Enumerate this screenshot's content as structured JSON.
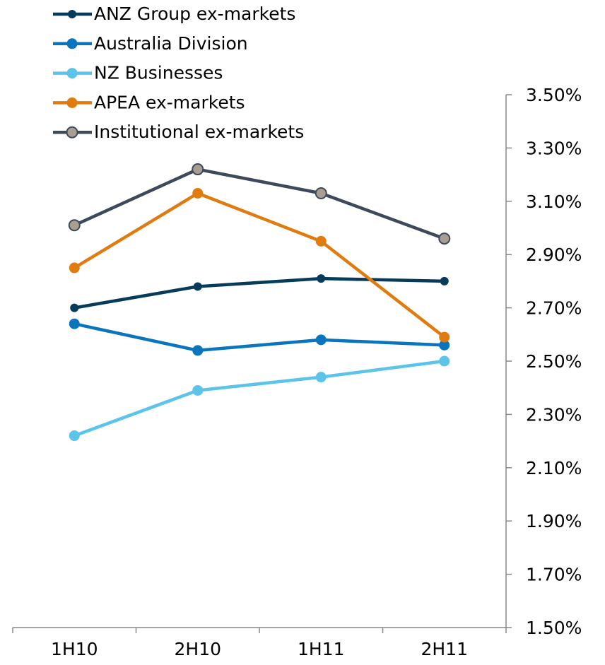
{
  "chart_data": {
    "type": "line",
    "categories": [
      "1H10",
      "2H10",
      "1H11",
      "2H11"
    ],
    "series": [
      {
        "name": "ANZ Group ex-markets",
        "color": "#073b5a",
        "values": [
          2.7,
          2.78,
          2.81,
          2.8
        ]
      },
      {
        "name": "Australia Division",
        "color": "#0a75bd",
        "values": [
          2.64,
          2.54,
          2.58,
          2.56
        ]
      },
      {
        "name": "NZ Businesses",
        "color": "#5bc4e8",
        "values": [
          2.22,
          2.39,
          2.44,
          2.5
        ]
      },
      {
        "name": "APEA ex-markets",
        "color": "#e07b10",
        "values": [
          2.85,
          3.13,
          2.95,
          2.59
        ]
      },
      {
        "name": "Institutional ex-markets",
        "color": "#3d4a5c",
        "marker_fill": "#a89e92",
        "values": [
          3.01,
          3.22,
          3.13,
          2.96
        ]
      }
    ],
    "ylim": [
      1.5,
      3.5
    ],
    "yticks": [
      {
        "value": 1.5,
        "label": "1.50%"
      },
      {
        "value": 1.7,
        "label": "1.70%"
      },
      {
        "value": 1.9,
        "label": "1.90%"
      },
      {
        "value": 2.1,
        "label": "2.10%"
      },
      {
        "value": 2.3,
        "label": "2.30%"
      },
      {
        "value": 2.5,
        "label": "2.50%"
      },
      {
        "value": 2.7,
        "label": "2.70%"
      },
      {
        "value": 2.9,
        "label": "2.90%"
      },
      {
        "value": 3.1,
        "label": "3.10%"
      },
      {
        "value": 3.3,
        "label": "3.30%"
      },
      {
        "value": 3.5,
        "label": "3.50%"
      }
    ],
    "y_axis_side": "right",
    "legend": "top-left"
  }
}
